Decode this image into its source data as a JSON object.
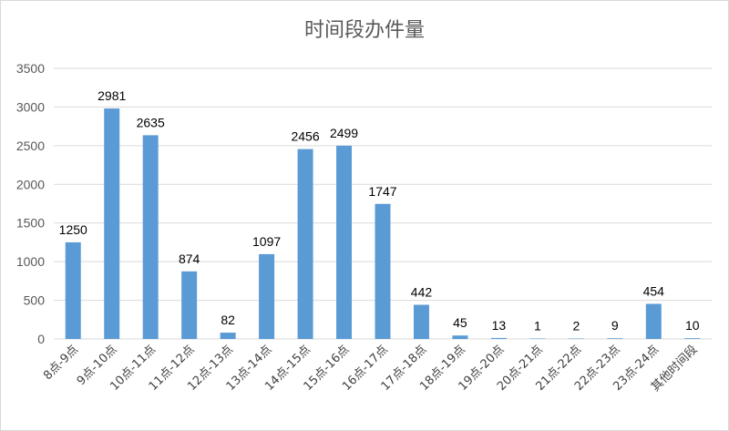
{
  "chart_data": {
    "type": "bar",
    "title": "时间段办件量",
    "categories": [
      "8点-9点",
      "9点-10点",
      "10点-11点",
      "11点-12点",
      "12点-13点",
      "13点-14点",
      "14点-15点",
      "15点-16点",
      "16点-17点",
      "17点-18点",
      "18点-19点",
      "19点-20点",
      "20点-21点",
      "21点-22点",
      "22点-23点",
      "23点-24点",
      "其他时间段"
    ],
    "values": [
      1250,
      2981,
      2635,
      874,
      82,
      1097,
      2456,
      2499,
      1747,
      442,
      45,
      13,
      1,
      2,
      9,
      454,
      10
    ],
    "ylim": [
      0,
      3500
    ],
    "yticks": [
      0,
      500,
      1000,
      1500,
      2000,
      2500,
      3000,
      3500
    ],
    "grid": true,
    "legend": "none",
    "bar_color": "#5b9bd5",
    "grid_color": "#d9d9d9"
  }
}
